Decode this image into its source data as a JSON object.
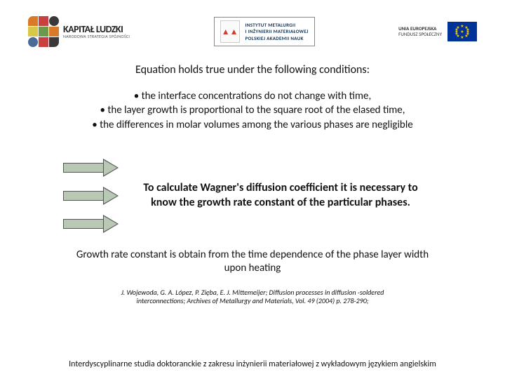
{
  "header": {
    "left": {
      "title": "KAPITAŁ LUDZKI",
      "subtitle": "NARODOWA STRATEGIA SPÓJNOŚCI"
    },
    "center": {
      "line1": "INSTYTUT METALURGII",
      "line2": "I INŻYNIERII MATERIAŁOWEJ",
      "line3": "POLSKIEJ AKADEMII NAUK"
    },
    "right": {
      "title": "UNIA EUROPEJSKA",
      "subtitle": "FUNDUSZ SPOŁECZNY"
    }
  },
  "heading": "Equation holds true under the following conditions:",
  "bullets": {
    "b1": "• the interface concentrations do not change with time,",
    "b2": "• the layer growth is proportional to the square root of the elased time,",
    "b3": "• the differences in molar volumes among the various phases are negligible"
  },
  "midtext": "To calculate Wagner's diffusion coefficient  it is necessary to know the growth rate constant of the particular phases.",
  "growth": "Growth rate constant is obtain from the time dependence of the phase layer width upon heating",
  "reference": "J. Wojewoda, G. A. López, P. Zięba, E. J. Mittemeijer; Diffusion processes in diffusion -soldered interconnections; Archives of Metallurgy and Materials,  Vol. 49 (2004) p. 278-290;",
  "footer": "Interdyscyplinarne studia doktoranckie z zakresu inżynierii materiałowej z wykładowym językiem angielskim",
  "colors": {
    "arrow_fill": "#b8c8b4",
    "arrow_border": "#555555",
    "eu_blue": "#003399",
    "eu_gold": "#ffcc00"
  }
}
